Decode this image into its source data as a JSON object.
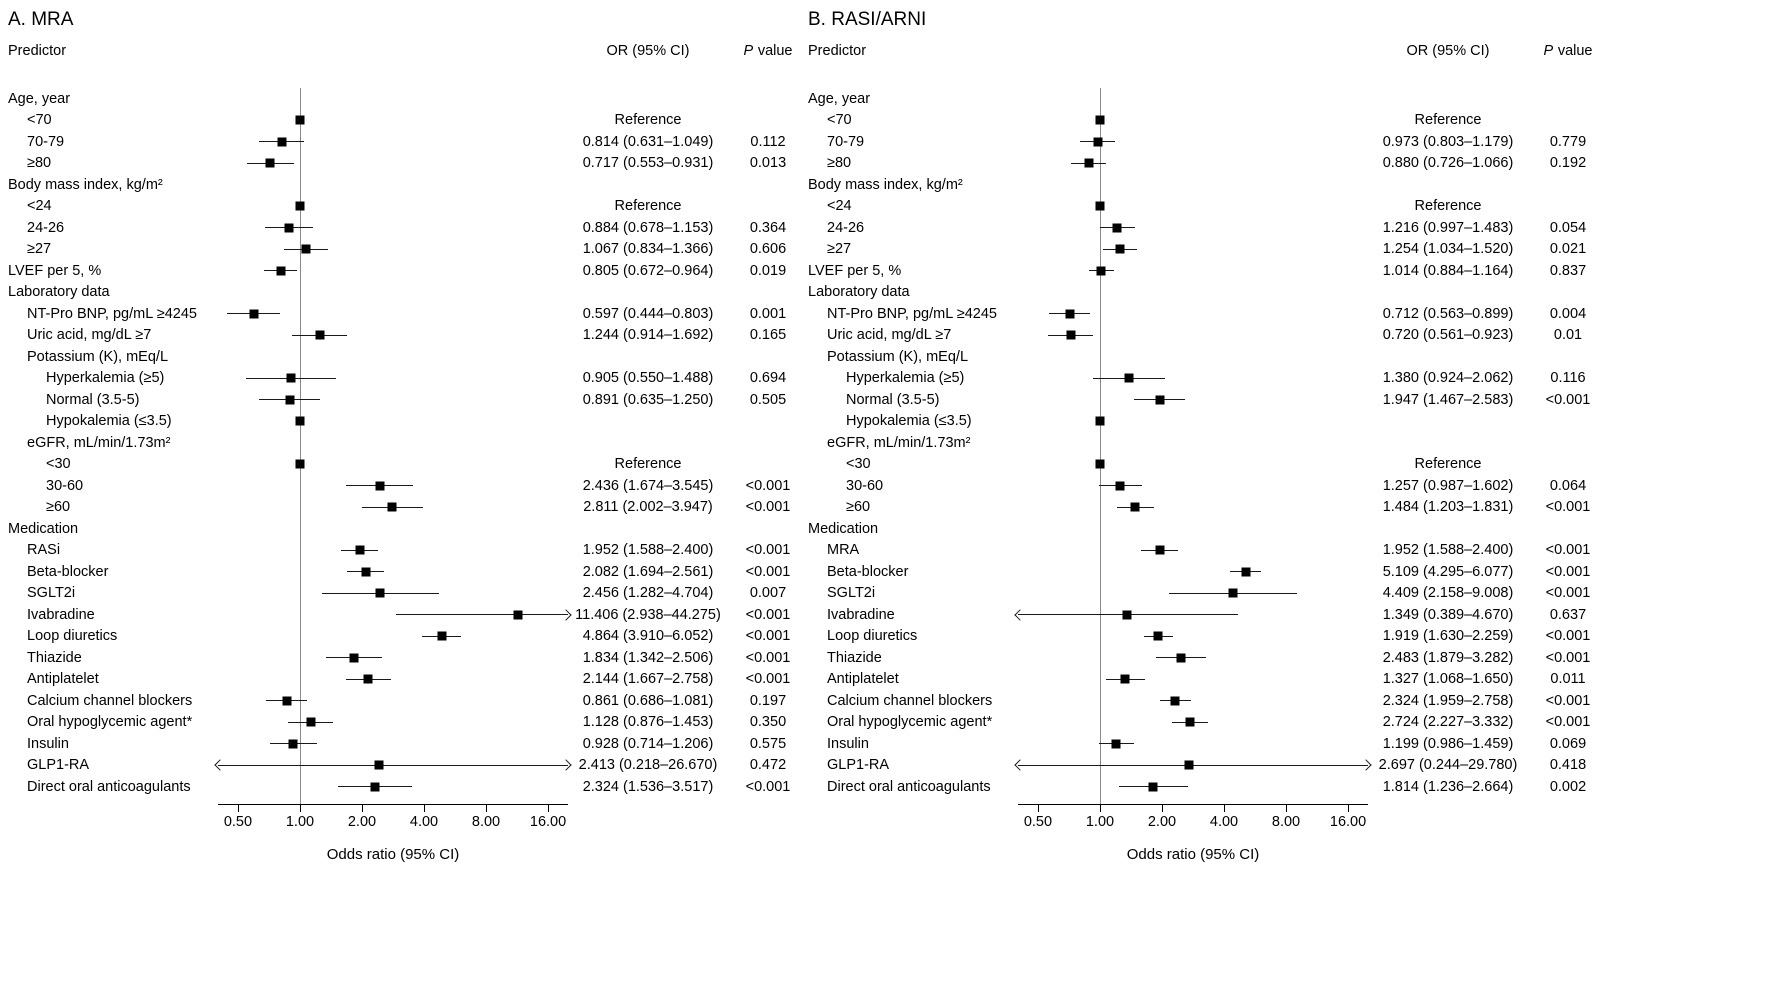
{
  "figure": {
    "columns": {
      "predictor": "Predictor",
      "or_ci": "OR (95% CI)",
      "p_italic": "P",
      "p_rest": "value"
    },
    "x_axis": {
      "label": "Odds ratio (95% CI)",
      "ticks": [
        "0.50",
        "1.00",
        "2.00",
        "4.00",
        "8.00",
        "16.00"
      ],
      "tick_values": [
        0.5,
        1,
        2,
        4,
        8,
        16
      ],
      "domain": [
        0.4,
        20
      ],
      "scale": "log",
      "reference_value": 1
    },
    "colors": {
      "marker": "#000000",
      "ci_line": "#1a1a1a",
      "reference_line": "#8a8a8a",
      "text": "#000000",
      "background": "#ffffff"
    }
  },
  "chart_data": [
    {
      "type": "forest",
      "title": "A. MRA",
      "rows": [
        {
          "label": "Age, year",
          "indent": 0,
          "kind": "header"
        },
        {
          "label": "<70",
          "indent": 1,
          "kind": "ref",
          "or_text": "Reference",
          "p": ""
        },
        {
          "label": "70-79",
          "indent": 1,
          "kind": "data",
          "or": 0.814,
          "lo": 0.631,
          "hi": 1.049,
          "or_text": "0.814 (0.631–1.049)",
          "p": "0.112"
        },
        {
          "label": "≥80",
          "indent": 1,
          "kind": "data",
          "or": 0.717,
          "lo": 0.553,
          "hi": 0.931,
          "or_text": "0.717 (0.553–0.931)",
          "p": "0.013"
        },
        {
          "label": "Body mass index, kg/m²",
          "indent": 0,
          "kind": "header"
        },
        {
          "label": "<24",
          "indent": 1,
          "kind": "ref",
          "or_text": "Reference",
          "p": ""
        },
        {
          "label": "24-26",
          "indent": 1,
          "kind": "data",
          "or": 0.884,
          "lo": 0.678,
          "hi": 1.153,
          "or_text": "0.884 (0.678–1.153)",
          "p": "0.364"
        },
        {
          "label": "≥27",
          "indent": 1,
          "kind": "data",
          "or": 1.067,
          "lo": 0.834,
          "hi": 1.366,
          "or_text": "1.067 (0.834–1.366)",
          "p": "0.606"
        },
        {
          "label": "LVEF per 5, %",
          "indent": 0,
          "kind": "data",
          "or": 0.805,
          "lo": 0.672,
          "hi": 0.964,
          "or_text": "0.805 (0.672–0.964)",
          "p": "0.019"
        },
        {
          "label": "Laboratory data",
          "indent": 0,
          "kind": "header"
        },
        {
          "label": "NT-Pro BNP, pg/mL ≥4245",
          "indent": 1,
          "kind": "data",
          "or": 0.597,
          "lo": 0.444,
          "hi": 0.803,
          "or_text": "0.597 (0.444–0.803)",
          "p": "0.001"
        },
        {
          "label": "Uric acid, mg/dL ≥7",
          "indent": 1,
          "kind": "data",
          "or": 1.244,
          "lo": 0.914,
          "hi": 1.692,
          "or_text": "1.244 (0.914–1.692)",
          "p": "0.165"
        },
        {
          "label": "Potassium (K), mEq/L",
          "indent": 1,
          "kind": "header"
        },
        {
          "label": "Hyperkalemia (≥5)",
          "indent": 2,
          "kind": "data",
          "or": 0.905,
          "lo": 0.55,
          "hi": 1.488,
          "or_text": "0.905 (0.550–1.488)",
          "p": "0.694"
        },
        {
          "label": "Normal (3.5-5)",
          "indent": 2,
          "kind": "data",
          "or": 0.891,
          "lo": 0.635,
          "hi": 1.25,
          "or_text": "0.891 (0.635–1.250)",
          "p": "0.505"
        },
        {
          "label": "Hypokalemia (≤3.5)",
          "indent": 2,
          "kind": "ref"
        },
        {
          "label": "eGFR, mL/min/1.73m²",
          "indent": 1,
          "kind": "header"
        },
        {
          "label": "<30",
          "indent": 2,
          "kind": "ref",
          "or_text": "Reference",
          "p": ""
        },
        {
          "label": "30-60",
          "indent": 2,
          "kind": "data",
          "or": 2.436,
          "lo": 1.674,
          "hi": 3.545,
          "or_text": "2.436 (1.674–3.545)",
          "p": "<0.001"
        },
        {
          "label": "≥60",
          "indent": 2,
          "kind": "data",
          "or": 2.811,
          "lo": 2.002,
          "hi": 3.947,
          "or_text": "2.811 (2.002–3.947)",
          "p": "<0.001"
        },
        {
          "label": "Medication",
          "indent": 0,
          "kind": "header"
        },
        {
          "label": "RASi",
          "indent": 1,
          "kind": "data",
          "or": 1.952,
          "lo": 1.588,
          "hi": 2.4,
          "or_text": "1.952 (1.588–2.400)",
          "p": "<0.001"
        },
        {
          "label": "Beta-blocker",
          "indent": 1,
          "kind": "data",
          "or": 2.082,
          "lo": 1.694,
          "hi": 2.561,
          "or_text": "2.082 (1.694–2.561)",
          "p": "<0.001"
        },
        {
          "label": "SGLT2i",
          "indent": 1,
          "kind": "data",
          "or": 2.456,
          "lo": 1.282,
          "hi": 4.704,
          "or_text": "2.456 (1.282–4.704)",
          "p": "0.007"
        },
        {
          "label": "Ivabradine",
          "indent": 1,
          "kind": "data",
          "or": 11.406,
          "lo": 2.938,
          "hi": 44.275,
          "or_text": "11.406 (2.938–44.275)",
          "p": "<0.001"
        },
        {
          "label": "Loop diuretics",
          "indent": 1,
          "kind": "data",
          "or": 4.864,
          "lo": 3.91,
          "hi": 6.052,
          "or_text": "4.864 (3.910–6.052)",
          "p": "<0.001"
        },
        {
          "label": "Thiazide",
          "indent": 1,
          "kind": "data",
          "or": 1.834,
          "lo": 1.342,
          "hi": 2.506,
          "or_text": "1.834 (1.342–2.506)",
          "p": "<0.001"
        },
        {
          "label": "Antiplatelet",
          "indent": 1,
          "kind": "data",
          "or": 2.144,
          "lo": 1.667,
          "hi": 2.758,
          "or_text": "2.144 (1.667–2.758)",
          "p": "<0.001"
        },
        {
          "label": "Calcium channel blockers",
          "indent": 1,
          "kind": "data",
          "or": 0.861,
          "lo": 0.686,
          "hi": 1.081,
          "or_text": "0.861 (0.686–1.081)",
          "p": "0.197"
        },
        {
          "label": "Oral hypoglycemic agent*",
          "indent": 1,
          "kind": "data",
          "or": 1.128,
          "lo": 0.876,
          "hi": 1.453,
          "or_text": "1.128 (0.876–1.453)",
          "p": "0.350"
        },
        {
          "label": "Insulin",
          "indent": 1,
          "kind": "data",
          "or": 0.928,
          "lo": 0.714,
          "hi": 1.206,
          "or_text": "0.928 (0.714–1.206)",
          "p": "0.575"
        },
        {
          "label": "GLP1-RA",
          "indent": 1,
          "kind": "data",
          "or": 2.413,
          "lo": 0.218,
          "hi": 26.67,
          "or_text": "2.413 (0.218–26.670)",
          "p": "0.472"
        },
        {
          "label": "Direct oral anticoagulants",
          "indent": 1,
          "kind": "data",
          "or": 2.324,
          "lo": 1.536,
          "hi": 3.517,
          "or_text": "2.324 (1.536–3.517)",
          "p": "<0.001"
        }
      ]
    },
    {
      "type": "forest",
      "title": "B. RASI/ARNI",
      "rows": [
        {
          "label": "Age, year",
          "indent": 0,
          "kind": "header"
        },
        {
          "label": "<70",
          "indent": 1,
          "kind": "ref",
          "or_text": "Reference",
          "p": ""
        },
        {
          "label": "70-79",
          "indent": 1,
          "kind": "data",
          "or": 0.973,
          "lo": 0.803,
          "hi": 1.179,
          "or_text": "0.973 (0.803–1.179)",
          "p": "0.779"
        },
        {
          "label": "≥80",
          "indent": 1,
          "kind": "data",
          "or": 0.88,
          "lo": 0.726,
          "hi": 1.066,
          "or_text": "0.880 (0.726–1.066)",
          "p": "0.192"
        },
        {
          "label": "Body mass index, kg/m²",
          "indent": 0,
          "kind": "header"
        },
        {
          "label": "<24",
          "indent": 1,
          "kind": "ref",
          "or_text": "Reference",
          "p": ""
        },
        {
          "label": "24-26",
          "indent": 1,
          "kind": "data",
          "or": 1.216,
          "lo": 0.997,
          "hi": 1.483,
          "or_text": "1.216 (0.997–1.483)",
          "p": "0.054"
        },
        {
          "label": "≥27",
          "indent": 1,
          "kind": "data",
          "or": 1.254,
          "lo": 1.034,
          "hi": 1.52,
          "or_text": "1.254 (1.034–1.520)",
          "p": "0.021"
        },
        {
          "label": "LVEF per 5, %",
          "indent": 0,
          "kind": "data",
          "or": 1.014,
          "lo": 0.884,
          "hi": 1.164,
          "or_text": "1.014 (0.884–1.164)",
          "p": "0.837"
        },
        {
          "label": "Laboratory data",
          "indent": 0,
          "kind": "header"
        },
        {
          "label": "NT-Pro BNP, pg/mL ≥4245",
          "indent": 1,
          "kind": "data",
          "or": 0.712,
          "lo": 0.563,
          "hi": 0.899,
          "or_text": "0.712 (0.563–0.899)",
          "p": "0.004"
        },
        {
          "label": "Uric acid, mg/dL ≥7",
          "indent": 1,
          "kind": "data",
          "or": 0.72,
          "lo": 0.561,
          "hi": 0.923,
          "or_text": "0.720 (0.561–0.923)",
          "p": "0.01"
        },
        {
          "label": "Potassium (K), mEq/L",
          "indent": 1,
          "kind": "header"
        },
        {
          "label": "Hyperkalemia (≥5)",
          "indent": 2,
          "kind": "data",
          "or": 1.38,
          "lo": 0.924,
          "hi": 2.062,
          "or_text": "1.380 (0.924–2.062)",
          "p": "0.116"
        },
        {
          "label": "Normal (3.5-5)",
          "indent": 2,
          "kind": "data",
          "or": 1.947,
          "lo": 1.467,
          "hi": 2.583,
          "or_text": "1.947 (1.467–2.583)",
          "p": "<0.001"
        },
        {
          "label": "Hypokalemia (≤3.5)",
          "indent": 2,
          "kind": "ref"
        },
        {
          "label": "eGFR, mL/min/1.73m²",
          "indent": 1,
          "kind": "header"
        },
        {
          "label": "<30",
          "indent": 2,
          "kind": "ref",
          "or_text": "Reference",
          "p": ""
        },
        {
          "label": "30-60",
          "indent": 2,
          "kind": "data",
          "or": 1.257,
          "lo": 0.987,
          "hi": 1.602,
          "or_text": "1.257 (0.987–1.602)",
          "p": "0.064"
        },
        {
          "label": "≥60",
          "indent": 2,
          "kind": "data",
          "or": 1.484,
          "lo": 1.203,
          "hi": 1.831,
          "or_text": "1.484 (1.203–1.831)",
          "p": "<0.001"
        },
        {
          "label": "Medication",
          "indent": 0,
          "kind": "header"
        },
        {
          "label": "MRA",
          "indent": 1,
          "kind": "data",
          "or": 1.952,
          "lo": 1.588,
          "hi": 2.4,
          "or_text": "1.952 (1.588–2.400)",
          "p": "<0.001"
        },
        {
          "label": "Beta-blocker",
          "indent": 1,
          "kind": "data",
          "or": 5.109,
          "lo": 4.295,
          "hi": 6.077,
          "or_text": "5.109 (4.295–6.077)",
          "p": "<0.001"
        },
        {
          "label": "SGLT2i",
          "indent": 1,
          "kind": "data",
          "or": 4.409,
          "lo": 2.158,
          "hi": 9.008,
          "or_text": "4.409 (2.158–9.008)",
          "p": "<0.001"
        },
        {
          "label": "Ivabradine",
          "indent": 1,
          "kind": "data",
          "or": 1.349,
          "lo": 0.389,
          "hi": 4.67,
          "or_text": "1.349 (0.389–4.670)",
          "p": "0.637"
        },
        {
          "label": "Loop diuretics",
          "indent": 1,
          "kind": "data",
          "or": 1.919,
          "lo": 1.63,
          "hi": 2.259,
          "or_text": "1.919 (1.630–2.259)",
          "p": "<0.001"
        },
        {
          "label": "Thiazide",
          "indent": 1,
          "kind": "data",
          "or": 2.483,
          "lo": 1.879,
          "hi": 3.282,
          "or_text": "2.483 (1.879–3.282)",
          "p": "<0.001"
        },
        {
          "label": "Antiplatelet",
          "indent": 1,
          "kind": "data",
          "or": 1.327,
          "lo": 1.068,
          "hi": 1.65,
          "or_text": "1.327 (1.068–1.650)",
          "p": "0.011"
        },
        {
          "label": "Calcium channel blockers",
          "indent": 1,
          "kind": "data",
          "or": 2.324,
          "lo": 1.959,
          "hi": 2.758,
          "or_text": "2.324 (1.959–2.758)",
          "p": "<0.001"
        },
        {
          "label": "Oral hypoglycemic agent*",
          "indent": 1,
          "kind": "data",
          "or": 2.724,
          "lo": 2.227,
          "hi": 3.332,
          "or_text": "2.724 (2.227–3.332)",
          "p": "<0.001"
        },
        {
          "label": "Insulin",
          "indent": 1,
          "kind": "data",
          "or": 1.199,
          "lo": 0.986,
          "hi": 1.459,
          "or_text": "1.199 (0.986–1.459)",
          "p": "0.069"
        },
        {
          "label": "GLP1-RA",
          "indent": 1,
          "kind": "data",
          "or": 2.697,
          "lo": 0.244,
          "hi": 29.78,
          "or_text": "2.697 (0.244–29.780)",
          "p": "0.418"
        },
        {
          "label": "Direct oral anticoagulants",
          "indent": 1,
          "kind": "data",
          "or": 1.814,
          "lo": 1.236,
          "hi": 2.664,
          "or_text": "1.814 (1.236–2.664)",
          "p": "0.002"
        }
      ]
    }
  ]
}
